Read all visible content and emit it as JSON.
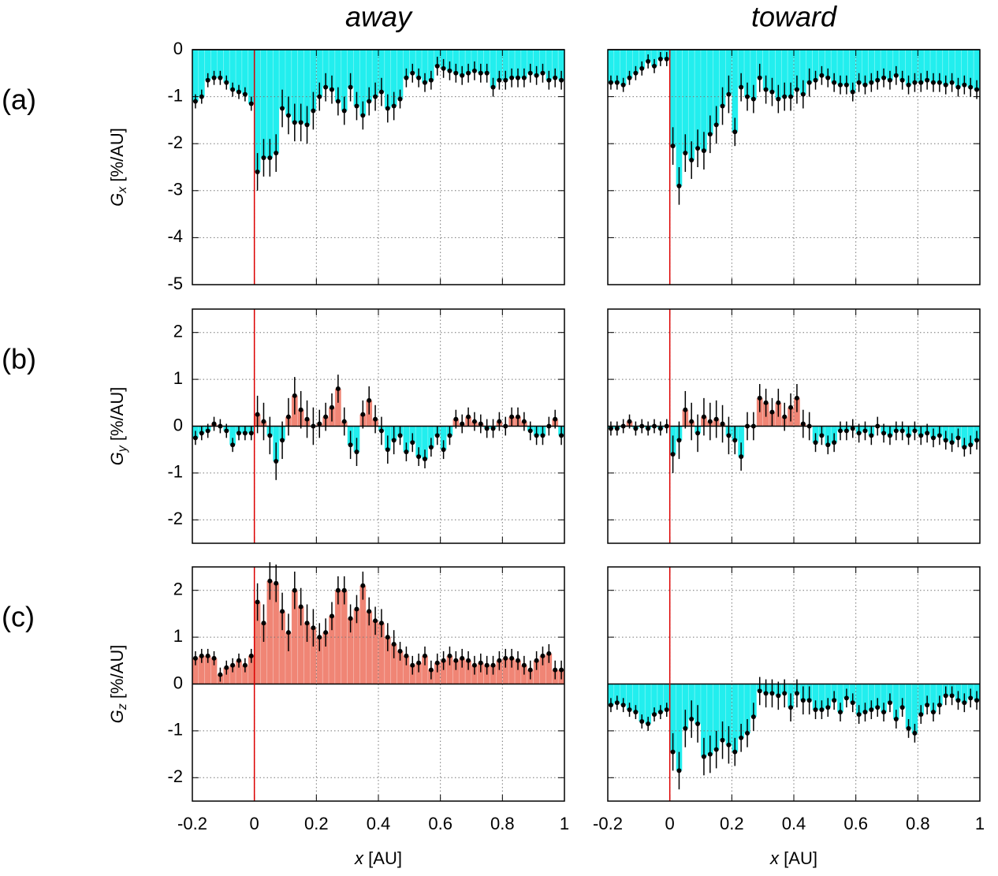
{
  "chart_data": [
    {
      "type": "errorbar-fill",
      "title": "away",
      "panel_label": "(a)",
      "ylabel": {
        "symbol": "G",
        "sub": "x",
        "unit": "[%/AU]"
      },
      "x": [
        -0.19,
        -0.17,
        -0.15,
        -0.13,
        -0.11,
        -0.09,
        -0.07,
        -0.05,
        -0.03,
        -0.01,
        0.01,
        0.03,
        0.05,
        0.07,
        0.09,
        0.11,
        0.13,
        0.15,
        0.17,
        0.19,
        0.21,
        0.23,
        0.25,
        0.27,
        0.29,
        0.31,
        0.33,
        0.35,
        0.37,
        0.39,
        0.41,
        0.43,
        0.45,
        0.47,
        0.49,
        0.51,
        0.53,
        0.55,
        0.57,
        0.59,
        0.61,
        0.63,
        0.65,
        0.67,
        0.69,
        0.71,
        0.73,
        0.75,
        0.77,
        0.79,
        0.81,
        0.83,
        0.85,
        0.87,
        0.89,
        0.91,
        0.93,
        0.95,
        0.97,
        0.99
      ],
      "values": [
        -1.1,
        -1.0,
        -0.65,
        -0.6,
        -0.6,
        -0.7,
        -0.85,
        -0.9,
        -0.95,
        -1.15,
        -2.6,
        -2.3,
        -2.3,
        -2.2,
        -1.25,
        -1.4,
        -1.55,
        -1.55,
        -1.6,
        -1.3,
        -1.0,
        -0.8,
        -0.85,
        -1.1,
        -1.3,
        -0.8,
        -1.2,
        -1.4,
        -1.1,
        -1.0,
        -0.9,
        -1.25,
        -1.2,
        -1.05,
        -0.6,
        -0.5,
        -0.6,
        -0.7,
        -0.65,
        -0.35,
        -0.4,
        -0.45,
        -0.5,
        -0.55,
        -0.5,
        -0.45,
        -0.5,
        -0.5,
        -0.8,
        -0.65,
        -0.65,
        -0.6,
        -0.6,
        -0.6,
        -0.5,
        -0.55,
        -0.5,
        -0.65,
        -0.6,
        -0.65
      ],
      "errors": [
        0.15,
        0.15,
        0.15,
        0.15,
        0.15,
        0.15,
        0.15,
        0.15,
        0.15,
        0.15,
        0.4,
        0.4,
        0.4,
        0.4,
        0.4,
        0.4,
        0.4,
        0.4,
        0.4,
        0.4,
        0.3,
        0.3,
        0.3,
        0.3,
        0.3,
        0.3,
        0.3,
        0.3,
        0.3,
        0.3,
        0.3,
        0.3,
        0.3,
        0.2,
        0.2,
        0.2,
        0.2,
        0.2,
        0.2,
        0.2,
        0.2,
        0.2,
        0.2,
        0.2,
        0.2,
        0.2,
        0.2,
        0.2,
        0.2,
        0.2,
        0.2,
        0.2,
        0.2,
        0.2,
        0.2,
        0.2,
        0.2,
        0.2,
        0.2,
        0.2
      ],
      "xlim": [
        -0.2,
        1
      ],
      "xticks": [
        -0.2,
        0,
        0.2,
        0.4,
        0.6,
        0.8,
        1
      ],
      "xtick_labels": false,
      "ylim": [
        -5,
        0
      ],
      "yticks": [
        -5,
        -4,
        -3,
        -2,
        -1,
        0
      ],
      "ytick_labels": true,
      "grid": true,
      "pos_color": "#f08575",
      "neg_color": "#22eeee",
      "marker_line": {
        "x": 0,
        "color": "#dd0000"
      }
    },
    {
      "type": "errorbar-fill",
      "title": "toward",
      "x": [
        -0.19,
        -0.17,
        -0.15,
        -0.13,
        -0.11,
        -0.09,
        -0.07,
        -0.05,
        -0.03,
        -0.01,
        0.01,
        0.03,
        0.05,
        0.07,
        0.09,
        0.11,
        0.13,
        0.15,
        0.17,
        0.19,
        0.21,
        0.23,
        0.25,
        0.27,
        0.29,
        0.31,
        0.33,
        0.35,
        0.37,
        0.39,
        0.41,
        0.43,
        0.45,
        0.47,
        0.49,
        0.51,
        0.53,
        0.55,
        0.57,
        0.59,
        0.61,
        0.63,
        0.65,
        0.67,
        0.69,
        0.71,
        0.73,
        0.75,
        0.77,
        0.79,
        0.81,
        0.83,
        0.85,
        0.87,
        0.89,
        0.91,
        0.93,
        0.95,
        0.97,
        0.99
      ],
      "values": [
        -0.7,
        -0.7,
        -0.75,
        -0.6,
        -0.5,
        -0.4,
        -0.25,
        -0.35,
        -0.2,
        -0.2,
        -2.05,
        -2.9,
        -2.2,
        -2.35,
        -2.1,
        -2.15,
        -1.8,
        -1.6,
        -1.2,
        -0.95,
        -1.75,
        -0.8,
        -1.0,
        -1.05,
        -0.6,
        -0.85,
        -0.9,
        -1.05,
        -1.0,
        -1.0,
        -0.85,
        -0.95,
        -0.7,
        -0.65,
        -0.55,
        -0.6,
        -0.7,
        -0.75,
        -0.75,
        -0.9,
        -0.7,
        -0.75,
        -0.7,
        -0.65,
        -0.6,
        -0.65,
        -0.55,
        -0.65,
        -0.75,
        -0.7,
        -0.7,
        -0.65,
        -0.7,
        -0.7,
        -0.75,
        -0.7,
        -0.8,
        -0.75,
        -0.8,
        -0.85
      ],
      "errors": [
        0.15,
        0.15,
        0.15,
        0.15,
        0.15,
        0.15,
        0.15,
        0.15,
        0.15,
        0.15,
        0.4,
        0.4,
        0.4,
        0.4,
        0.4,
        0.4,
        0.4,
        0.4,
        0.4,
        0.4,
        0.3,
        0.3,
        0.3,
        0.3,
        0.3,
        0.3,
        0.3,
        0.3,
        0.3,
        0.3,
        0.3,
        0.3,
        0.3,
        0.2,
        0.2,
        0.2,
        0.2,
        0.2,
        0.2,
        0.2,
        0.2,
        0.2,
        0.2,
        0.2,
        0.2,
        0.2,
        0.2,
        0.2,
        0.2,
        0.2,
        0.2,
        0.2,
        0.2,
        0.2,
        0.2,
        0.2,
        0.2,
        0.2,
        0.2,
        0.2
      ],
      "xlim": [
        -0.2,
        1
      ],
      "xticks": [
        -0.2,
        0,
        0.2,
        0.4,
        0.6,
        0.8,
        1
      ],
      "xtick_labels": false,
      "ylim": [
        -5,
        0
      ],
      "yticks": [
        -5,
        -4,
        -3,
        -2,
        -1,
        0
      ],
      "ytick_labels": false,
      "grid": true,
      "pos_color": "#f08575",
      "neg_color": "#22eeee",
      "marker_line": {
        "x": 0,
        "color": "#dd0000"
      }
    },
    {
      "type": "errorbar-fill",
      "panel_label": "(b)",
      "ylabel": {
        "symbol": "G",
        "sub": "y",
        "unit": "[%/AU]"
      },
      "x": [
        -0.19,
        -0.17,
        -0.15,
        -0.13,
        -0.11,
        -0.09,
        -0.07,
        -0.05,
        -0.03,
        -0.01,
        0.01,
        0.03,
        0.05,
        0.07,
        0.09,
        0.11,
        0.13,
        0.15,
        0.17,
        0.19,
        0.21,
        0.23,
        0.25,
        0.27,
        0.29,
        0.31,
        0.33,
        0.35,
        0.37,
        0.39,
        0.41,
        0.43,
        0.45,
        0.47,
        0.49,
        0.51,
        0.53,
        0.55,
        0.57,
        0.59,
        0.61,
        0.63,
        0.65,
        0.67,
        0.69,
        0.71,
        0.73,
        0.75,
        0.77,
        0.79,
        0.81,
        0.83,
        0.85,
        0.87,
        0.89,
        0.91,
        0.93,
        0.95,
        0.97,
        0.99
      ],
      "values": [
        -0.25,
        -0.15,
        -0.1,
        0.05,
        0.0,
        -0.1,
        -0.4,
        -0.15,
        -0.15,
        -0.15,
        0.25,
        0.1,
        -0.2,
        -0.75,
        -0.3,
        0.2,
        0.65,
        0.35,
        0.15,
        0.0,
        0.05,
        0.2,
        0.4,
        0.8,
        0.1,
        -0.4,
        -0.55,
        0.25,
        0.55,
        0.15,
        -0.1,
        -0.5,
        -0.3,
        -0.2,
        -0.55,
        -0.35,
        -0.65,
        -0.7,
        -0.45,
        -0.2,
        -0.5,
        -0.2,
        0.15,
        0.05,
        0.2,
        0.1,
        0.05,
        -0.05,
        -0.05,
        0.1,
        0.0,
        0.2,
        0.2,
        0.1,
        -0.1,
        -0.2,
        -0.2,
        0.0,
        0.15,
        -0.2
      ],
      "errors": [
        0.15,
        0.15,
        0.15,
        0.15,
        0.15,
        0.15,
        0.15,
        0.15,
        0.15,
        0.15,
        0.4,
        0.4,
        0.4,
        0.4,
        0.4,
        0.4,
        0.4,
        0.4,
        0.4,
        0.4,
        0.3,
        0.3,
        0.3,
        0.3,
        0.3,
        0.3,
        0.3,
        0.3,
        0.3,
        0.3,
        0.3,
        0.3,
        0.3,
        0.2,
        0.2,
        0.2,
        0.2,
        0.2,
        0.2,
        0.2,
        0.2,
        0.2,
        0.2,
        0.2,
        0.2,
        0.2,
        0.2,
        0.2,
        0.2,
        0.2,
        0.2,
        0.2,
        0.2,
        0.2,
        0.2,
        0.2,
        0.2,
        0.2,
        0.2,
        0.2
      ],
      "xlim": [
        -0.2,
        1
      ],
      "xticks": [
        -0.2,
        0,
        0.2,
        0.4,
        0.6,
        0.8,
        1
      ],
      "xtick_labels": false,
      "ylim": [
        -2.5,
        2.5
      ],
      "yticks": [
        -2,
        -1,
        0,
        1,
        2
      ],
      "ytick_labels": true,
      "grid": true,
      "pos_color": "#f08575",
      "neg_color": "#22eeee",
      "marker_line": {
        "x": 0,
        "color": "#dd0000"
      }
    },
    {
      "type": "errorbar-fill",
      "x": [
        -0.19,
        -0.17,
        -0.15,
        -0.13,
        -0.11,
        -0.09,
        -0.07,
        -0.05,
        -0.03,
        -0.01,
        0.01,
        0.03,
        0.05,
        0.07,
        0.09,
        0.11,
        0.13,
        0.15,
        0.17,
        0.19,
        0.21,
        0.23,
        0.25,
        0.27,
        0.29,
        0.31,
        0.33,
        0.35,
        0.37,
        0.39,
        0.41,
        0.43,
        0.45,
        0.47,
        0.49,
        0.51,
        0.53,
        0.55,
        0.57,
        0.59,
        0.61,
        0.63,
        0.65,
        0.67,
        0.69,
        0.71,
        0.73,
        0.75,
        0.77,
        0.79,
        0.81,
        0.83,
        0.85,
        0.87,
        0.89,
        0.91,
        0.93,
        0.95,
        0.97,
        0.99
      ],
      "values": [
        -0.05,
        -0.05,
        0.0,
        0.1,
        -0.05,
        0.0,
        -0.05,
        0.0,
        -0.05,
        0.0,
        -0.6,
        -0.3,
        0.35,
        0.1,
        -0.15,
        0.2,
        0.1,
        0.15,
        0.05,
        -0.2,
        -0.3,
        -0.65,
        0.0,
        0.0,
        0.6,
        0.5,
        0.3,
        0.5,
        0.2,
        0.4,
        0.6,
        0.05,
        0.0,
        -0.35,
        -0.2,
        -0.4,
        -0.35,
        -0.1,
        -0.1,
        -0.05,
        -0.15,
        -0.1,
        -0.2,
        0.0,
        -0.15,
        -0.2,
        -0.1,
        -0.1,
        -0.2,
        -0.1,
        -0.2,
        -0.15,
        -0.25,
        -0.2,
        -0.3,
        -0.35,
        -0.25,
        -0.45,
        -0.4,
        -0.3
      ],
      "errors": [
        0.15,
        0.15,
        0.15,
        0.15,
        0.15,
        0.15,
        0.15,
        0.15,
        0.15,
        0.15,
        0.4,
        0.4,
        0.4,
        0.4,
        0.4,
        0.4,
        0.4,
        0.4,
        0.4,
        0.4,
        0.3,
        0.3,
        0.3,
        0.3,
        0.3,
        0.3,
        0.3,
        0.3,
        0.3,
        0.3,
        0.3,
        0.3,
        0.3,
        0.2,
        0.2,
        0.2,
        0.2,
        0.2,
        0.2,
        0.2,
        0.2,
        0.2,
        0.2,
        0.2,
        0.2,
        0.2,
        0.2,
        0.2,
        0.2,
        0.2,
        0.2,
        0.2,
        0.2,
        0.2,
        0.2,
        0.2,
        0.2,
        0.2,
        0.2,
        0.2
      ],
      "xlim": [
        -0.2,
        1
      ],
      "xticks": [
        -0.2,
        0,
        0.2,
        0.4,
        0.6,
        0.8,
        1
      ],
      "xtick_labels": false,
      "ylim": [
        -2.5,
        2.5
      ],
      "yticks": [
        -2,
        -1,
        0,
        1,
        2
      ],
      "ytick_labels": false,
      "grid": true,
      "pos_color": "#f08575",
      "neg_color": "#22eeee",
      "marker_line": {
        "x": 0,
        "color": "#dd0000"
      }
    },
    {
      "type": "errorbar-fill",
      "panel_label": "(c)",
      "ylabel": {
        "symbol": "G",
        "sub": "z",
        "unit": "[%/AU]"
      },
      "xlabel": {
        "symbol": "x",
        "unit": "[AU]"
      },
      "x": [
        -0.19,
        -0.17,
        -0.15,
        -0.13,
        -0.11,
        -0.09,
        -0.07,
        -0.05,
        -0.03,
        -0.01,
        0.01,
        0.03,
        0.05,
        0.07,
        0.09,
        0.11,
        0.13,
        0.15,
        0.17,
        0.19,
        0.21,
        0.23,
        0.25,
        0.27,
        0.29,
        0.31,
        0.33,
        0.35,
        0.37,
        0.39,
        0.41,
        0.43,
        0.45,
        0.47,
        0.49,
        0.51,
        0.53,
        0.55,
        0.57,
        0.59,
        0.61,
        0.63,
        0.65,
        0.67,
        0.69,
        0.71,
        0.73,
        0.75,
        0.77,
        0.79,
        0.81,
        0.83,
        0.85,
        0.87,
        0.89,
        0.91,
        0.93,
        0.95,
        0.97,
        0.99
      ],
      "values": [
        0.55,
        0.6,
        0.6,
        0.55,
        0.2,
        0.35,
        0.4,
        0.5,
        0.4,
        0.6,
        1.75,
        1.3,
        2.2,
        2.15,
        1.55,
        1.1,
        2.0,
        1.65,
        1.3,
        1.2,
        1.0,
        1.1,
        1.45,
        2.0,
        2.0,
        1.4,
        1.6,
        2.1,
        1.55,
        1.35,
        1.3,
        1.0,
        0.85,
        0.7,
        0.6,
        0.4,
        0.45,
        0.6,
        0.3,
        0.45,
        0.5,
        0.6,
        0.5,
        0.55,
        0.5,
        0.4,
        0.45,
        0.4,
        0.4,
        0.5,
        0.55,
        0.55,
        0.5,
        0.4,
        0.3,
        0.5,
        0.6,
        0.65,
        0.3,
        0.3
      ],
      "errors": [
        0.15,
        0.15,
        0.15,
        0.15,
        0.15,
        0.15,
        0.15,
        0.15,
        0.15,
        0.15,
        0.4,
        0.4,
        0.4,
        0.4,
        0.4,
        0.4,
        0.4,
        0.4,
        0.4,
        0.4,
        0.3,
        0.3,
        0.3,
        0.3,
        0.3,
        0.3,
        0.3,
        0.3,
        0.3,
        0.3,
        0.3,
        0.3,
        0.3,
        0.2,
        0.2,
        0.2,
        0.2,
        0.2,
        0.2,
        0.2,
        0.2,
        0.2,
        0.2,
        0.2,
        0.2,
        0.2,
        0.2,
        0.2,
        0.2,
        0.2,
        0.2,
        0.2,
        0.2,
        0.2,
        0.2,
        0.2,
        0.2,
        0.2,
        0.2,
        0.2
      ],
      "xlim": [
        -0.2,
        1
      ],
      "xticks": [
        -0.2,
        0,
        0.2,
        0.4,
        0.6,
        0.8,
        1
      ],
      "xtick_labels": true,
      "ylim": [
        -2.5,
        2.5
      ],
      "yticks": [
        -2,
        -1,
        0,
        1,
        2
      ],
      "ytick_labels": true,
      "grid": true,
      "pos_color": "#f08575",
      "neg_color": "#22eeee",
      "marker_line": {
        "x": 0,
        "color": "#dd0000"
      }
    },
    {
      "type": "errorbar-fill",
      "xlabel": {
        "symbol": "x",
        "unit": "[AU]"
      },
      "x": [
        -0.19,
        -0.17,
        -0.15,
        -0.13,
        -0.11,
        -0.09,
        -0.07,
        -0.05,
        -0.03,
        -0.01,
        0.01,
        0.03,
        0.05,
        0.07,
        0.09,
        0.11,
        0.13,
        0.15,
        0.17,
        0.19,
        0.21,
        0.23,
        0.25,
        0.27,
        0.29,
        0.31,
        0.33,
        0.35,
        0.37,
        0.39,
        0.41,
        0.43,
        0.45,
        0.47,
        0.49,
        0.51,
        0.53,
        0.55,
        0.57,
        0.59,
        0.61,
        0.63,
        0.65,
        0.67,
        0.69,
        0.71,
        0.73,
        0.75,
        0.77,
        0.79,
        0.81,
        0.83,
        0.85,
        0.87,
        0.89,
        0.91,
        0.93,
        0.95,
        0.97,
        0.99
      ],
      "values": [
        -0.45,
        -0.4,
        -0.45,
        -0.55,
        -0.6,
        -0.8,
        -0.85,
        -0.65,
        -0.6,
        -0.55,
        -1.45,
        -1.85,
        -0.95,
        -0.75,
        -0.85,
        -1.55,
        -1.5,
        -1.4,
        -1.2,
        -1.3,
        -1.45,
        -1.15,
        -1.05,
        -0.7,
        -0.15,
        -0.2,
        -0.2,
        -0.25,
        -0.2,
        -0.5,
        -0.2,
        -0.35,
        -0.35,
        -0.55,
        -0.55,
        -0.5,
        -0.35,
        -0.6,
        -0.3,
        -0.4,
        -0.65,
        -0.6,
        -0.55,
        -0.5,
        -0.6,
        -0.4,
        -0.75,
        -0.5,
        -0.95,
        -1.05,
        -0.65,
        -0.45,
        -0.6,
        -0.45,
        -0.25,
        -0.25,
        -0.35,
        -0.4,
        -0.3,
        -0.35
      ],
      "errors": [
        0.15,
        0.15,
        0.15,
        0.15,
        0.15,
        0.15,
        0.15,
        0.15,
        0.15,
        0.15,
        0.4,
        0.4,
        0.4,
        0.4,
        0.4,
        0.4,
        0.4,
        0.4,
        0.4,
        0.4,
        0.3,
        0.3,
        0.3,
        0.3,
        0.3,
        0.3,
        0.3,
        0.3,
        0.3,
        0.3,
        0.3,
        0.3,
        0.3,
        0.2,
        0.2,
        0.2,
        0.2,
        0.2,
        0.2,
        0.2,
        0.2,
        0.2,
        0.2,
        0.2,
        0.2,
        0.2,
        0.2,
        0.2,
        0.2,
        0.2,
        0.2,
        0.2,
        0.2,
        0.2,
        0.2,
        0.2,
        0.2,
        0.2,
        0.2,
        0.2
      ],
      "xlim": [
        -0.2,
        1
      ],
      "xticks": [
        -0.2,
        0,
        0.2,
        0.4,
        0.6,
        0.8,
        1
      ],
      "xtick_labels": true,
      "ylim": [
        -2.5,
        2.5
      ],
      "yticks": [
        -2,
        -1,
        0,
        1,
        2
      ],
      "ytick_labels": false,
      "grid": true,
      "pos_color": "#f08575",
      "neg_color": "#22eeee",
      "marker_line": {
        "x": 0,
        "color": "#dd0000"
      }
    }
  ]
}
